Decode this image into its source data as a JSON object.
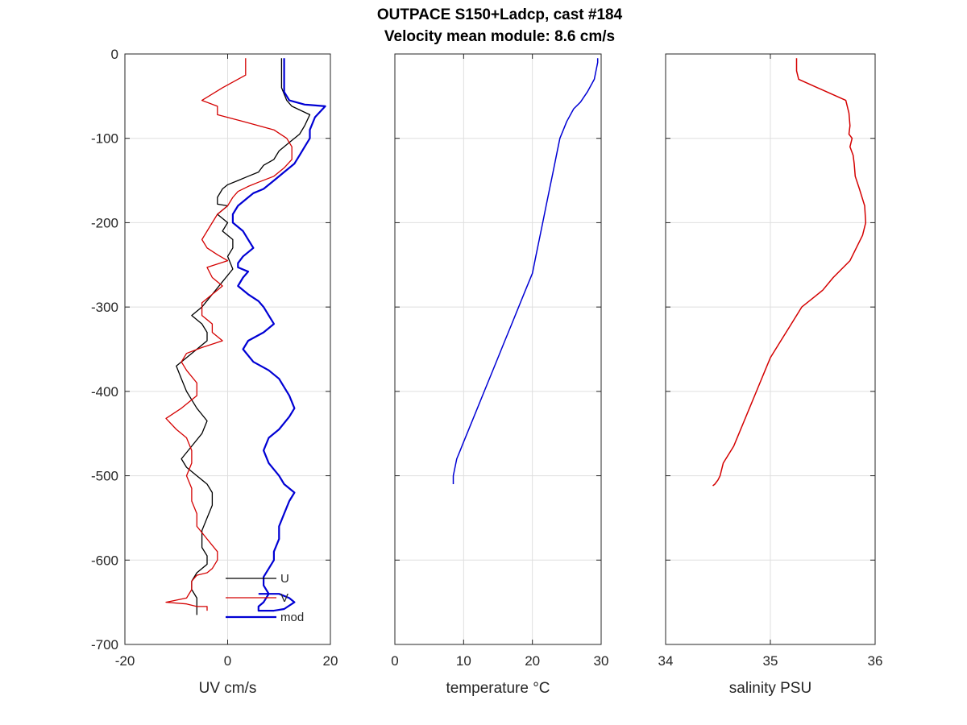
{
  "figure": {
    "title_line1": "OUTPACE S150+Ladcp, cast #184",
    "title_line2": "Velocity mean module:  8.6 cm/s"
  },
  "chart_data": [
    {
      "type": "line",
      "xlabel": "UV cm/s",
      "ylabel": "",
      "xlim": [
        -20,
        20
      ],
      "ylim": [
        -700,
        0
      ],
      "xticks": [
        "-20",
        "0",
        "20"
      ],
      "yticks": [
        "0",
        "-100",
        "-200",
        "-300",
        "-400",
        "-500",
        "-600",
        "-700"
      ],
      "grid": true,
      "legend_position": "bottom-right",
      "series": [
        {
          "name": "U",
          "color": "#000000",
          "width": 1.3,
          "x": [
            10.5,
            10.5,
            11.5,
            12.5,
            16,
            15,
            14,
            12,
            10,
            9,
            7,
            6,
            4,
            2,
            0,
            -1,
            -2,
            -2,
            0,
            -2,
            0,
            -1,
            1,
            1,
            0,
            1,
            -1,
            -3,
            -5,
            -7,
            -5,
            -4,
            -4,
            -6,
            -8,
            -10,
            -9,
            -8,
            -7,
            -6,
            -4,
            -5,
            -7,
            -9,
            -8,
            -6,
            -4,
            -3,
            -3,
            -4,
            -5,
            -5,
            -5,
            -4,
            -4,
            -6,
            -7,
            -7,
            -6,
            -6,
            -6,
            -6
          ],
          "y": [
            -5,
            -40,
            -55,
            -62,
            -72,
            -85,
            -95,
            -105,
            -115,
            -125,
            -132,
            -140,
            -145,
            -150,
            -155,
            -160,
            -170,
            -178,
            -180,
            -190,
            -200,
            -210,
            -220,
            -230,
            -240,
            -255,
            -270,
            -285,
            -300,
            -310,
            -320,
            -330,
            -340,
            -350,
            -360,
            -370,
            -385,
            -400,
            -410,
            -420,
            -435,
            -450,
            -465,
            -480,
            -490,
            -500,
            -510,
            -520,
            -535,
            -550,
            -565,
            -575,
            -585,
            -595,
            -605,
            -615,
            -625,
            -635,
            -645,
            -655,
            -665,
            -665
          ]
        },
        {
          "name": "V",
          "color": "#d40000",
          "width": 1.3,
          "x": [
            3.5,
            3.5,
            -1,
            -5,
            -2,
            -2,
            3,
            9,
            11.5,
            12.5,
            12.5,
            11,
            9,
            6,
            4,
            2,
            1,
            0,
            -2,
            -3,
            -4,
            -5,
            -4,
            -2,
            0,
            -4,
            -3,
            -1,
            -3,
            -5,
            -5,
            -3,
            -3,
            -1,
            -5,
            -8,
            -9,
            -8,
            -6,
            -6,
            -9,
            -12,
            -10,
            -8,
            -7,
            -7,
            -8,
            -7,
            -7,
            -6,
            -6,
            -4,
            -2,
            -2,
            -3,
            -4,
            -6,
            -7,
            -7,
            -8,
            -12,
            -8,
            -6,
            -4,
            -4
          ],
          "y": [
            -5,
            -25,
            -40,
            -55,
            -62,
            -72,
            -80,
            -90,
            -100,
            -110,
            -125,
            -135,
            -145,
            -152,
            -157,
            -163,
            -170,
            -180,
            -190,
            -200,
            -210,
            -220,
            -230,
            -238,
            -245,
            -253,
            -265,
            -275,
            -285,
            -295,
            -310,
            -320,
            -330,
            -340,
            -348,
            -355,
            -365,
            -375,
            -390,
            -405,
            -420,
            -432,
            -445,
            -455,
            -470,
            -485,
            -500,
            -515,
            -530,
            -545,
            -560,
            -575,
            -590,
            -600,
            -610,
            -615,
            -618,
            -625,
            -635,
            -645,
            -650,
            -652,
            -655,
            -655,
            -660
          ]
        },
        {
          "name": "mod",
          "color": "#0000d4",
          "width": 2.2,
          "x": [
            11,
            11,
            12,
            15,
            19,
            17,
            16,
            16,
            15,
            14,
            13,
            11,
            9,
            7,
            5,
            4,
            2,
            1,
            1,
            3,
            4,
            5,
            3,
            2,
            2,
            4,
            3,
            2,
            4,
            6,
            7,
            8,
            9,
            7,
            4,
            3,
            5,
            8,
            10,
            11,
            12,
            13,
            12,
            10,
            8,
            7,
            8,
            10,
            11,
            13,
            12,
            11,
            10,
            10,
            9,
            9,
            8,
            7,
            7,
            8,
            7,
            6,
            6,
            6,
            6,
            7,
            8,
            9,
            11,
            13,
            12,
            10,
            8,
            6
          ],
          "y": [
            -5,
            -45,
            -55,
            -60,
            -62,
            -75,
            -90,
            -100,
            -110,
            -120,
            -130,
            -140,
            -150,
            -160,
            -165,
            -170,
            -180,
            -190,
            -200,
            -210,
            -220,
            -230,
            -240,
            -248,
            -253,
            -258,
            -265,
            -275,
            -285,
            -293,
            -300,
            -310,
            -320,
            -330,
            -340,
            -350,
            -365,
            -375,
            -385,
            -395,
            -405,
            -420,
            -430,
            -445,
            -455,
            -470,
            -485,
            -500,
            -510,
            -520,
            -530,
            -545,
            -560,
            -575,
            -590,
            -600,
            -610,
            -620,
            -630,
            -640,
            -650,
            -655,
            -660,
            -660,
            -660,
            -660,
            -660,
            -660,
            -658,
            -650,
            -645,
            -640,
            -640,
            -640
          ]
        }
      ]
    },
    {
      "type": "line",
      "xlabel": "temperature °C",
      "ylabel": "",
      "xlim": [
        0,
        30
      ],
      "ylim": [
        -700,
        0
      ],
      "xticks": [
        "0",
        "10",
        "20",
        "30"
      ],
      "yticks": [],
      "grid": true,
      "series": [
        {
          "color": "#0000d4",
          "width": 1.5,
          "x": [
            29.5,
            29.5,
            29,
            28,
            27,
            26,
            25,
            24.5,
            24,
            23.5,
            23,
            22.5,
            22,
            21.5,
            21,
            20.5,
            20,
            19,
            18,
            17,
            16,
            15,
            14,
            13,
            12,
            11,
            10,
            9.5,
            9,
            8.5,
            8.5
          ],
          "y": [
            -5,
            -10,
            -30,
            -45,
            -57,
            -65,
            -80,
            -90,
            -100,
            -120,
            -140,
            -160,
            -180,
            -200,
            -220,
            -240,
            -260,
            -280,
            -300,
            -320,
            -340,
            -360,
            -380,
            -400,
            -420,
            -440,
            -460,
            -470,
            -480,
            -500,
            -510
          ]
        }
      ]
    },
    {
      "type": "line",
      "xlabel": "salinity PSU",
      "ylabel": "",
      "xlim": [
        34,
        36
      ],
      "ylim": [
        -700,
        0
      ],
      "xticks": [
        "34",
        "35",
        "36"
      ],
      "yticks": [],
      "grid": true,
      "series": [
        {
          "color": "#d40000",
          "width": 1.5,
          "x": [
            35.25,
            35.25,
            35.27,
            35.45,
            35.72,
            35.75,
            35.76,
            35.75,
            35.78,
            35.76,
            35.79,
            35.8,
            35.81,
            35.85,
            35.9,
            35.91,
            35.88,
            35.84,
            35.8,
            35.76,
            35.6,
            35.5,
            35.4,
            35.3,
            35.2,
            35.1,
            35.0,
            34.95,
            34.9,
            34.85,
            34.8,
            34.75,
            34.7,
            34.65,
            34.6,
            34.55,
            34.52,
            34.5,
            34.47,
            34.45
          ],
          "y": [
            -5,
            -20,
            -30,
            -40,
            -55,
            -70,
            -85,
            -95,
            -100,
            -110,
            -120,
            -130,
            -145,
            -160,
            -180,
            -200,
            -215,
            -225,
            -235,
            -245,
            -265,
            -280,
            -290,
            -300,
            -320,
            -340,
            -360,
            -375,
            -390,
            -405,
            -420,
            -435,
            -450,
            -465,
            -475,
            -485,
            -500,
            -505,
            -510,
            -512
          ]
        }
      ]
    }
  ]
}
